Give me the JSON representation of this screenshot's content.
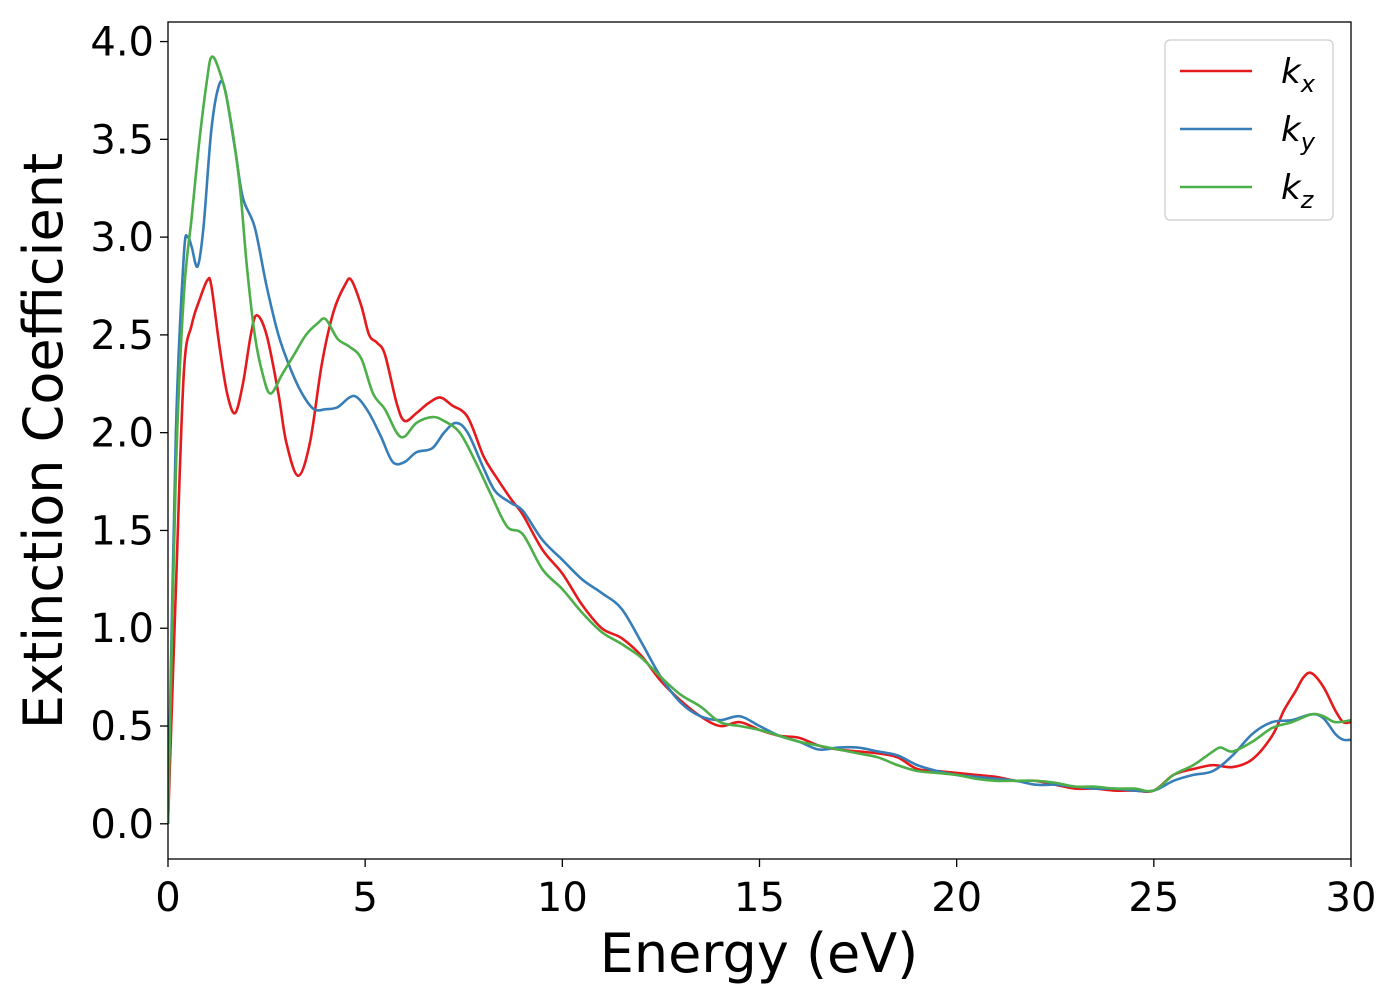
{
  "chart_data": {
    "type": "line",
    "title": "",
    "xlabel": "Energy (eV)",
    "ylabel": "Extinction Coefficient",
    "xlim": [
      0,
      30
    ],
    "ylim": [
      -0.18,
      4.1
    ],
    "xticks": [
      0,
      5,
      10,
      15,
      20,
      25,
      30
    ],
    "yticks": [
      0.0,
      0.5,
      1.0,
      1.5,
      2.0,
      2.5,
      3.0,
      3.5,
      4.0
    ],
    "grid": false,
    "legend_position": "top-right",
    "series": [
      {
        "name": "k",
        "subscript": "x",
        "color": "#e41a1c",
        "points": [
          [
            0,
            0.0
          ],
          [
            0.2,
            1.2
          ],
          [
            0.4,
            2.3
          ],
          [
            0.6,
            2.55
          ],
          [
            0.8,
            2.68
          ],
          [
            1.0,
            2.78
          ],
          [
            1.1,
            2.75
          ],
          [
            1.3,
            2.45
          ],
          [
            1.5,
            2.2
          ],
          [
            1.7,
            2.1
          ],
          [
            1.9,
            2.25
          ],
          [
            2.1,
            2.5
          ],
          [
            2.25,
            2.6
          ],
          [
            2.5,
            2.5
          ],
          [
            2.8,
            2.2
          ],
          [
            3.0,
            1.95
          ],
          [
            3.3,
            1.78
          ],
          [
            3.6,
            1.95
          ],
          [
            3.9,
            2.35
          ],
          [
            4.2,
            2.62
          ],
          [
            4.5,
            2.76
          ],
          [
            4.65,
            2.78
          ],
          [
            4.9,
            2.65
          ],
          [
            5.1,
            2.5
          ],
          [
            5.3,
            2.46
          ],
          [
            5.5,
            2.4
          ],
          [
            5.8,
            2.15
          ],
          [
            6.0,
            2.06
          ],
          [
            6.3,
            2.1
          ],
          [
            6.6,
            2.15
          ],
          [
            6.9,
            2.18
          ],
          [
            7.2,
            2.14
          ],
          [
            7.6,
            2.08
          ],
          [
            8.0,
            1.88
          ],
          [
            8.3,
            1.78
          ],
          [
            8.7,
            1.66
          ],
          [
            9.0,
            1.58
          ],
          [
            9.5,
            1.4
          ],
          [
            10.0,
            1.28
          ],
          [
            10.5,
            1.12
          ],
          [
            11.0,
            1.0
          ],
          [
            11.5,
            0.95
          ],
          [
            12.0,
            0.86
          ],
          [
            12.5,
            0.73
          ],
          [
            13.0,
            0.63
          ],
          [
            13.5,
            0.55
          ],
          [
            14.0,
            0.5
          ],
          [
            14.5,
            0.52
          ],
          [
            15.0,
            0.48
          ],
          [
            15.5,
            0.45
          ],
          [
            16.0,
            0.44
          ],
          [
            16.5,
            0.4
          ],
          [
            17.0,
            0.38
          ],
          [
            17.5,
            0.37
          ],
          [
            18.0,
            0.36
          ],
          [
            18.5,
            0.34
          ],
          [
            19.0,
            0.28
          ],
          [
            19.5,
            0.27
          ],
          [
            20.0,
            0.26
          ],
          [
            20.5,
            0.25
          ],
          [
            21.0,
            0.24
          ],
          [
            21.5,
            0.22
          ],
          [
            22.0,
            0.22
          ],
          [
            22.5,
            0.2
          ],
          [
            23.0,
            0.18
          ],
          [
            23.5,
            0.18
          ],
          [
            24.0,
            0.17
          ],
          [
            24.5,
            0.17
          ],
          [
            25.0,
            0.17
          ],
          [
            25.5,
            0.25
          ],
          [
            26.0,
            0.28
          ],
          [
            26.5,
            0.3
          ],
          [
            27.0,
            0.29
          ],
          [
            27.5,
            0.33
          ],
          [
            28.0,
            0.45
          ],
          [
            28.3,
            0.58
          ],
          [
            28.6,
            0.68
          ],
          [
            28.8,
            0.75
          ],
          [
            29.0,
            0.77
          ],
          [
            29.3,
            0.7
          ],
          [
            29.6,
            0.58
          ],
          [
            29.8,
            0.52
          ],
          [
            30.0,
            0.52
          ]
        ]
      },
      {
        "name": "k",
        "subscript": "y",
        "color": "#377eb8",
        "points": [
          [
            0,
            0.0
          ],
          [
            0.2,
            2.0
          ],
          [
            0.4,
            2.9
          ],
          [
            0.5,
            3.0
          ],
          [
            0.6,
            2.95
          ],
          [
            0.75,
            2.85
          ],
          [
            0.9,
            3.05
          ],
          [
            1.1,
            3.55
          ],
          [
            1.3,
            3.78
          ],
          [
            1.45,
            3.75
          ],
          [
            1.7,
            3.45
          ],
          [
            1.9,
            3.2
          ],
          [
            2.2,
            3.05
          ],
          [
            2.5,
            2.75
          ],
          [
            2.8,
            2.5
          ],
          [
            3.1,
            2.33
          ],
          [
            3.4,
            2.2
          ],
          [
            3.7,
            2.12
          ],
          [
            4.0,
            2.12
          ],
          [
            4.3,
            2.13
          ],
          [
            4.6,
            2.18
          ],
          [
            4.8,
            2.18
          ],
          [
            5.1,
            2.1
          ],
          [
            5.4,
            1.98
          ],
          [
            5.7,
            1.85
          ],
          [
            6.0,
            1.85
          ],
          [
            6.3,
            1.9
          ],
          [
            6.7,
            1.92
          ],
          [
            7.0,
            2.0
          ],
          [
            7.3,
            2.05
          ],
          [
            7.6,
            2.0
          ],
          [
            8.0,
            1.82
          ],
          [
            8.3,
            1.7
          ],
          [
            8.7,
            1.64
          ],
          [
            9.0,
            1.6
          ],
          [
            9.5,
            1.45
          ],
          [
            10.0,
            1.35
          ],
          [
            10.5,
            1.25
          ],
          [
            11.0,
            1.18
          ],
          [
            11.5,
            1.1
          ],
          [
            12.0,
            0.93
          ],
          [
            12.5,
            0.75
          ],
          [
            13.0,
            0.62
          ],
          [
            13.5,
            0.55
          ],
          [
            14.0,
            0.53
          ],
          [
            14.5,
            0.55
          ],
          [
            15.0,
            0.5
          ],
          [
            15.5,
            0.45
          ],
          [
            16.0,
            0.42
          ],
          [
            16.5,
            0.38
          ],
          [
            17.0,
            0.39
          ],
          [
            17.5,
            0.39
          ],
          [
            18.0,
            0.37
          ],
          [
            18.5,
            0.35
          ],
          [
            19.0,
            0.3
          ],
          [
            19.5,
            0.27
          ],
          [
            20.0,
            0.25
          ],
          [
            20.5,
            0.24
          ],
          [
            21.0,
            0.23
          ],
          [
            21.5,
            0.22
          ],
          [
            22.0,
            0.2
          ],
          [
            22.5,
            0.2
          ],
          [
            23.0,
            0.19
          ],
          [
            23.5,
            0.18
          ],
          [
            24.0,
            0.18
          ],
          [
            24.5,
            0.17
          ],
          [
            25.0,
            0.17
          ],
          [
            25.5,
            0.22
          ],
          [
            26.0,
            0.25
          ],
          [
            26.5,
            0.27
          ],
          [
            27.0,
            0.35
          ],
          [
            27.5,
            0.46
          ],
          [
            28.0,
            0.52
          ],
          [
            28.5,
            0.53
          ],
          [
            29.0,
            0.56
          ],
          [
            29.3,
            0.54
          ],
          [
            29.6,
            0.46
          ],
          [
            29.8,
            0.43
          ],
          [
            30.0,
            0.43
          ]
        ]
      },
      {
        "name": "k",
        "subscript": "z",
        "color": "#4daf4a",
        "points": [
          [
            0,
            0.0
          ],
          [
            0.2,
            1.8
          ],
          [
            0.4,
            2.7
          ],
          [
            0.6,
            3.1
          ],
          [
            0.8,
            3.5
          ],
          [
            1.0,
            3.82
          ],
          [
            1.1,
            3.92
          ],
          [
            1.25,
            3.88
          ],
          [
            1.5,
            3.7
          ],
          [
            1.8,
            3.3
          ],
          [
            2.0,
            2.85
          ],
          [
            2.2,
            2.5
          ],
          [
            2.4,
            2.3
          ],
          [
            2.6,
            2.2
          ],
          [
            2.9,
            2.3
          ],
          [
            3.2,
            2.4
          ],
          [
            3.5,
            2.5
          ],
          [
            3.8,
            2.56
          ],
          [
            4.0,
            2.58
          ],
          [
            4.3,
            2.48
          ],
          [
            4.6,
            2.44
          ],
          [
            4.9,
            2.38
          ],
          [
            5.2,
            2.2
          ],
          [
            5.5,
            2.12
          ],
          [
            5.8,
            2.0
          ],
          [
            6.0,
            1.98
          ],
          [
            6.3,
            2.05
          ],
          [
            6.7,
            2.08
          ],
          [
            7.0,
            2.06
          ],
          [
            7.4,
            2.0
          ],
          [
            7.8,
            1.85
          ],
          [
            8.2,
            1.68
          ],
          [
            8.6,
            1.52
          ],
          [
            9.0,
            1.48
          ],
          [
            9.5,
            1.3
          ],
          [
            10.0,
            1.2
          ],
          [
            10.5,
            1.08
          ],
          [
            11.0,
            0.98
          ],
          [
            11.5,
            0.92
          ],
          [
            12.0,
            0.85
          ],
          [
            12.5,
            0.75
          ],
          [
            13.0,
            0.66
          ],
          [
            13.5,
            0.6
          ],
          [
            14.0,
            0.52
          ],
          [
            14.5,
            0.5
          ],
          [
            15.0,
            0.48
          ],
          [
            15.5,
            0.45
          ],
          [
            16.0,
            0.42
          ],
          [
            16.5,
            0.4
          ],
          [
            17.0,
            0.38
          ],
          [
            17.5,
            0.36
          ],
          [
            18.0,
            0.34
          ],
          [
            18.5,
            0.3
          ],
          [
            19.0,
            0.27
          ],
          [
            19.5,
            0.26
          ],
          [
            20.0,
            0.25
          ],
          [
            20.5,
            0.23
          ],
          [
            21.0,
            0.22
          ],
          [
            21.5,
            0.22
          ],
          [
            22.0,
            0.22
          ],
          [
            22.5,
            0.21
          ],
          [
            23.0,
            0.19
          ],
          [
            23.5,
            0.19
          ],
          [
            24.0,
            0.18
          ],
          [
            24.5,
            0.18
          ],
          [
            25.0,
            0.17
          ],
          [
            25.5,
            0.25
          ],
          [
            26.0,
            0.3
          ],
          [
            26.5,
            0.37
          ],
          [
            26.7,
            0.39
          ],
          [
            27.0,
            0.37
          ],
          [
            27.5,
            0.42
          ],
          [
            28.0,
            0.49
          ],
          [
            28.5,
            0.52
          ],
          [
            29.0,
            0.56
          ],
          [
            29.3,
            0.55
          ],
          [
            29.6,
            0.52
          ],
          [
            30.0,
            0.53
          ]
        ]
      }
    ]
  }
}
